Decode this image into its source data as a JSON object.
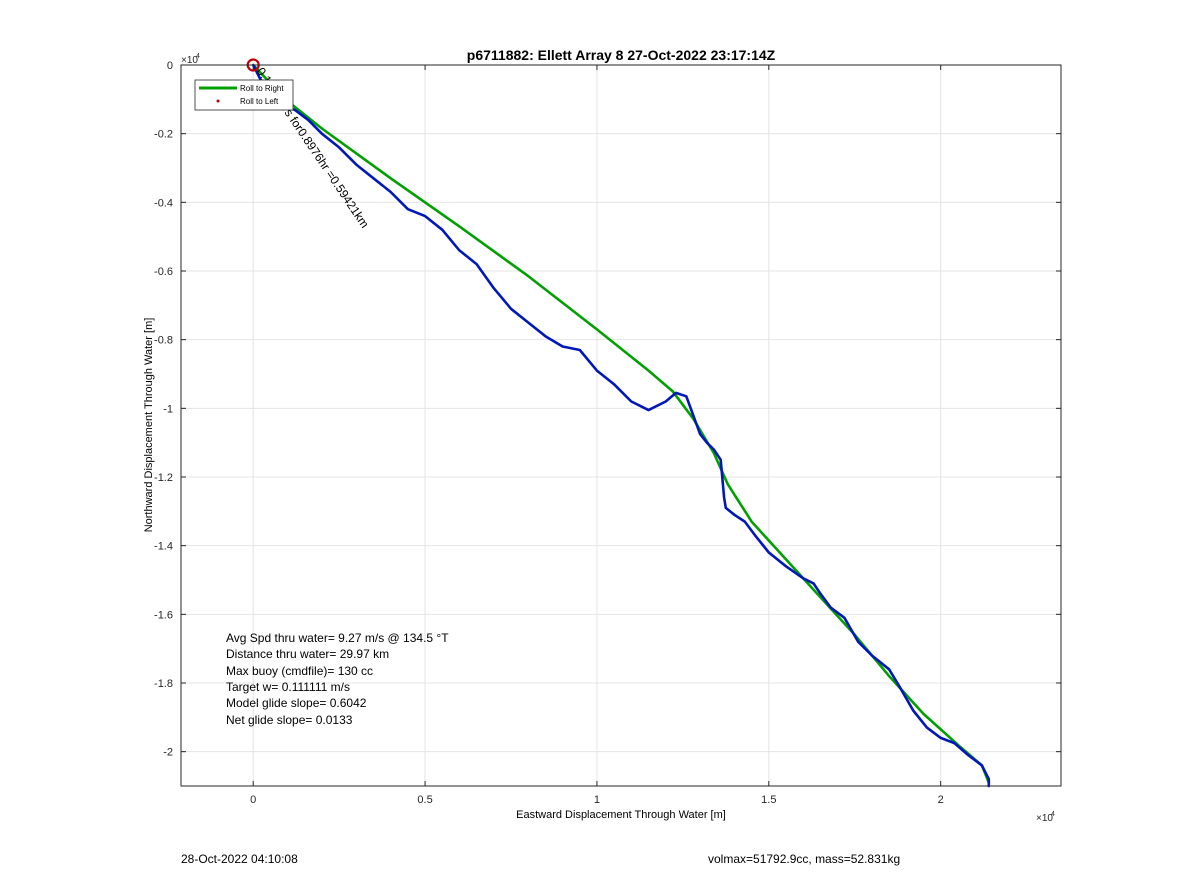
{
  "chart_data": {
    "type": "line",
    "title": "p6711882: Ellett Array 8 27-Oct-2022 23:17:14Z",
    "xlabel": "Eastward Displacement Through Water [m]",
    "ylabel": "Northward Displacement Through Water [m]",
    "x_exponent_label": "×10",
    "x_exponent_power": "4",
    "y_exponent_label": "×10",
    "y_exponent_power": "4",
    "xlim": [
      -2100,
      23500
    ],
    "ylim": [
      -21000,
      0
    ],
    "grid": true,
    "x_ticks": [
      0,
      5000,
      10000,
      15000,
      20000
    ],
    "x_tick_labels": [
      "0",
      "0.5",
      "1",
      "1.5",
      "2"
    ],
    "y_ticks": [
      0,
      -2000,
      -4000,
      -6000,
      -8000,
      -10000,
      -12000,
      -14000,
      -16000,
      -18000,
      -20000
    ],
    "y_tick_labels": [
      "0",
      "-0.2",
      "-0.4",
      "-0.6",
      "-0.8",
      "-1",
      "-1.2",
      "-1.4",
      "-1.6",
      "-1.8",
      "-2"
    ],
    "legend_position": "top-left",
    "series": [
      {
        "name": "Roll to Right",
        "color": "#00a000",
        "x": [
          0,
          1000,
          2000,
          4000,
          6000,
          8000,
          10000,
          11500,
          12200,
          12800,
          13400,
          13800,
          14500,
          15500,
          16500,
          17500,
          18500,
          19500,
          20500,
          21200,
          21400
        ],
        "y": [
          0,
          -1050,
          -1850,
          -3300,
          -4700,
          -6150,
          -7700,
          -8900,
          -9500,
          -10300,
          -11300,
          -12200,
          -13300,
          -14400,
          -15500,
          -16600,
          -17800,
          -18900,
          -19800,
          -20400,
          -20900
        ]
      },
      {
        "name": "Roll to Left",
        "color": "#0018b8",
        "x": [
          0,
          200,
          400,
          600,
          900,
          1200,
          1600,
          2000,
          2500,
          3000,
          3500,
          4000,
          4500,
          5000,
          5500,
          6000,
          6500,
          7000,
          7500,
          8000,
          8500,
          9000,
          9500,
          10000,
          10500,
          11000,
          11500,
          12000,
          12300,
          12600,
          12800,
          13000,
          13200,
          13400,
          13600,
          13700,
          13750,
          14000,
          14300,
          14600,
          15000,
          15500,
          16000,
          16300,
          16500,
          16800,
          17200,
          17600,
          18000,
          18500,
          18800,
          19200,
          19600,
          20000,
          20400,
          20800,
          21200,
          21400,
          21400
        ],
        "y": [
          0,
          -400,
          -700,
          -1000,
          -1250,
          -1300,
          -1600,
          -2000,
          -2400,
          -2900,
          -3300,
          -3700,
          -4200,
          -4400,
          -4800,
          -5400,
          -5800,
          -6500,
          -7100,
          -7500,
          -7900,
          -8200,
          -8300,
          -8900,
          -9300,
          -9800,
          -10050,
          -9800,
          -9550,
          -9650,
          -10200,
          -10750,
          -11000,
          -11200,
          -11500,
          -12600,
          -12900,
          -13100,
          -13300,
          -13700,
          -14200,
          -14600,
          -14950,
          -15100,
          -15400,
          -15800,
          -16100,
          -16800,
          -17200,
          -17600,
          -18100,
          -18800,
          -19300,
          -19600,
          -19750,
          -20100,
          -20400,
          -20800,
          -21000
        ]
      }
    ],
    "start_marker": {
      "x": 0,
      "y": 0,
      "color": "#c00000"
    },
    "rotated_annotation": "0.1839m/s for0.8976hr =0.59421km",
    "stats_lines": [
      "Avg Spd thru water=  9.27 m/s @ 134.5 °T",
      "Distance thru water= 29.97 km",
      "Max buoy (cmdfile)= 130 cc",
      "Target w= 0.111111 m/s",
      "Model glide slope= 0.6042",
      "Net glide slope= 0.0133"
    ]
  },
  "footer": {
    "timestamp": "28-Oct-2022 04:10:08",
    "volmax_mass": "volmax=51792.9cc, mass=52.831kg"
  }
}
